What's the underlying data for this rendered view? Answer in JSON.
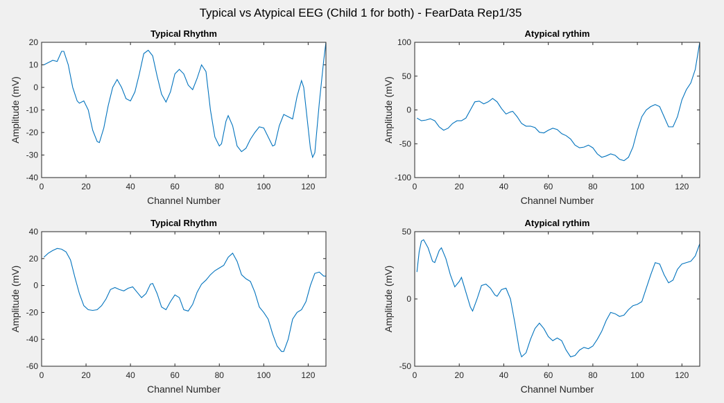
{
  "title": "Typical vs Atypical EEG (Child 1 for both) - FearData Rep1/35",
  "chart_data": [
    {
      "type": "line",
      "title": "Typical Rhythm",
      "xlabel": "Channel Number",
      "ylabel": "Amplitude (mV)",
      "x": [
        1,
        3,
        5,
        7,
        9,
        10,
        12,
        14,
        16,
        17,
        19,
        21,
        23,
        25,
        26,
        28,
        30,
        32,
        34,
        36,
        38,
        40,
        42,
        44,
        46,
        48,
        50,
        52,
        54,
        56,
        58,
        60,
        62,
        64,
        66,
        68,
        70,
        72,
        74,
        76,
        78,
        80,
        81,
        83,
        84,
        86,
        88,
        90,
        92,
        94,
        96,
        98,
        100,
        102,
        104,
        105,
        107,
        109,
        111,
        113,
        115,
        117,
        118,
        120,
        121,
        122,
        123,
        125,
        127,
        128
      ],
      "series": [
        {
          "name": "Typical Rhythm",
          "color": "#0072bd",
          "values": [
            10,
            11,
            12,
            11.5,
            16,
            16,
            10,
            0,
            -6,
            -7,
            -6,
            -10,
            -19,
            -24,
            -24.5,
            -18,
            -8,
            0,
            3.5,
            0,
            -5,
            -6,
            -2,
            6,
            15,
            16.5,
            14,
            5,
            -3,
            -6.5,
            -2,
            6,
            8,
            6,
            1,
            -1,
            4,
            10,
            7,
            -10,
            -22,
            -26,
            -25,
            -15,
            -12.5,
            -17,
            -26,
            -28.5,
            -27,
            -23,
            -20,
            -17.5,
            -18,
            -22,
            -26,
            -25.5,
            -17,
            -12,
            -13,
            -14,
            -4,
            3,
            0,
            -18,
            -27,
            -31,
            -29,
            -7,
            12,
            20
          ]
        }
      ],
      "xlim": [
        0,
        128
      ],
      "xticks": [
        0,
        20,
        40,
        60,
        80,
        100,
        120
      ],
      "ylim": [
        -40,
        20
      ],
      "yticks": [
        -40,
        -30,
        -20,
        -10,
        0,
        10,
        20
      ]
    },
    {
      "type": "line",
      "title": "Atypical rythim",
      "xlabel": "Channel Number",
      "ylabel": "Amplitude (mV)",
      "x": [
        1,
        3,
        5,
        7,
        9,
        11,
        13,
        15,
        17,
        19,
        21,
        23,
        25,
        27,
        29,
        31,
        33,
        35,
        37,
        39,
        41,
        43,
        44,
        46,
        48,
        50,
        52,
        54,
        56,
        58,
        60,
        62,
        64,
        66,
        68,
        70,
        72,
        74,
        76,
        78,
        80,
        82,
        84,
        86,
        88,
        90,
        92,
        94,
        96,
        98,
        100,
        102,
        104,
        106,
        108,
        110,
        112,
        114,
        116,
        118,
        120,
        122,
        124,
        126,
        128
      ],
      "series": [
        {
          "name": "Atypical rythim",
          "color": "#0072bd",
          "values": [
            -12,
            -16,
            -15,
            -13,
            -16,
            -25,
            -30,
            -27,
            -20,
            -16,
            -16,
            -12,
            0,
            12,
            13,
            9,
            12,
            17,
            12,
            2,
            -6,
            -3,
            -2,
            -10,
            -20,
            -24,
            -24,
            -26,
            -33,
            -34,
            -30,
            -27,
            -29,
            -35,
            -38,
            -43,
            -52,
            -56,
            -55,
            -52,
            -56,
            -65,
            -70,
            -68,
            -65,
            -67,
            -73,
            -75,
            -70,
            -55,
            -30,
            -10,
            0,
            5,
            8,
            5,
            -10,
            -25,
            -25,
            -10,
            15,
            30,
            40,
            60,
            100
          ]
        }
      ],
      "xlim": [
        0,
        128
      ],
      "xticks": [
        0,
        20,
        40,
        60,
        80,
        100,
        120
      ],
      "ylim": [
        -100,
        100
      ],
      "yticks": [
        -100,
        -50,
        0,
        50,
        100
      ]
    },
    {
      "type": "line",
      "title": "Typical Rhythm",
      "xlabel": "Channel Number",
      "ylabel": "Amplitude (mV)",
      "x": [
        1,
        3,
        5,
        7,
        9,
        11,
        13,
        15,
        17,
        19,
        21,
        23,
        25,
        27,
        29,
        31,
        33,
        35,
        37,
        39,
        41,
        43,
        45,
        47,
        49,
        50,
        52,
        54,
        56,
        58,
        60,
        62,
        64,
        66,
        68,
        70,
        72,
        74,
        76,
        78,
        80,
        82,
        84,
        86,
        88,
        90,
        92,
        94,
        96,
        98,
        100,
        102,
        104,
        106,
        108,
        109,
        111,
        113,
        115,
        117,
        119,
        121,
        123,
        125,
        127,
        128
      ],
      "series": [
        {
          "name": "Typical Rhythm",
          "color": "#0072bd",
          "values": [
            21,
            24,
            26,
            27.5,
            27,
            25,
            19,
            6,
            -6,
            -15,
            -18,
            -18.5,
            -18,
            -15,
            -10,
            -3,
            -1.5,
            -3,
            -4,
            -2,
            -1,
            -5,
            -9,
            -6,
            1,
            1.5,
            -6,
            -16,
            -18,
            -12,
            -7,
            -9,
            -18,
            -19,
            -14,
            -5,
            1,
            4,
            8,
            11,
            13,
            15,
            21,
            24,
            18,
            8,
            5,
            3,
            -5,
            -16,
            -20,
            -25,
            -36,
            -45,
            -49,
            -49,
            -40,
            -25,
            -20,
            -18,
            -12,
            0,
            9,
            10,
            7,
            7
          ]
        }
      ],
      "xlim": [
        0,
        128
      ],
      "xticks": [
        0,
        20,
        40,
        60,
        80,
        100,
        120
      ],
      "ylim": [
        -60,
        40
      ],
      "yticks": [
        -60,
        -40,
        -20,
        0,
        20,
        40
      ]
    },
    {
      "type": "line",
      "title": "Atypical rythim",
      "xlabel": "Channel Number",
      "ylabel": "Amplitude (mV)",
      "x": [
        1,
        2,
        3,
        4,
        6,
        8,
        9,
        11,
        12,
        14,
        16,
        18,
        20,
        21,
        23,
        25,
        26,
        28,
        30,
        32,
        34,
        36,
        37,
        39,
        41,
        43,
        45,
        47,
        48,
        50,
        52,
        54,
        56,
        58,
        60,
        62,
        64,
        66,
        68,
        70,
        72,
        74,
        76,
        78,
        80,
        82,
        84,
        86,
        88,
        90,
        92,
        94,
        96,
        98,
        100,
        102,
        104,
        106,
        108,
        110,
        112,
        114,
        116,
        118,
        120,
        122,
        124,
        126,
        128
      ],
      "series": [
        {
          "name": "Atypical rythim",
          "color": "#0072bd",
          "values": [
            20,
            35,
            43,
            44,
            38,
            28,
            27,
            36,
            38,
            30,
            18,
            9,
            13,
            16,
            5,
            -6,
            -9,
            0,
            10,
            11,
            8,
            3,
            2,
            7,
            8,
            0,
            -18,
            -38,
            -43,
            -40,
            -30,
            -22,
            -18,
            -22,
            -28,
            -31,
            -29,
            -31,
            -38,
            -43,
            -42,
            -38,
            -36,
            -37,
            -35,
            -30,
            -24,
            -16,
            -10,
            -11,
            -13,
            -12,
            -8,
            -5,
            -4,
            -2,
            8,
            18,
            27,
            26,
            18,
            12,
            14,
            22,
            26,
            27,
            28,
            32,
            41
          ]
        }
      ],
      "xlim": [
        0,
        128
      ],
      "xticks": [
        0,
        20,
        40,
        60,
        80,
        100,
        120
      ],
      "ylim": [
        -50,
        50
      ],
      "yticks": [
        -50,
        0,
        50
      ]
    }
  ]
}
